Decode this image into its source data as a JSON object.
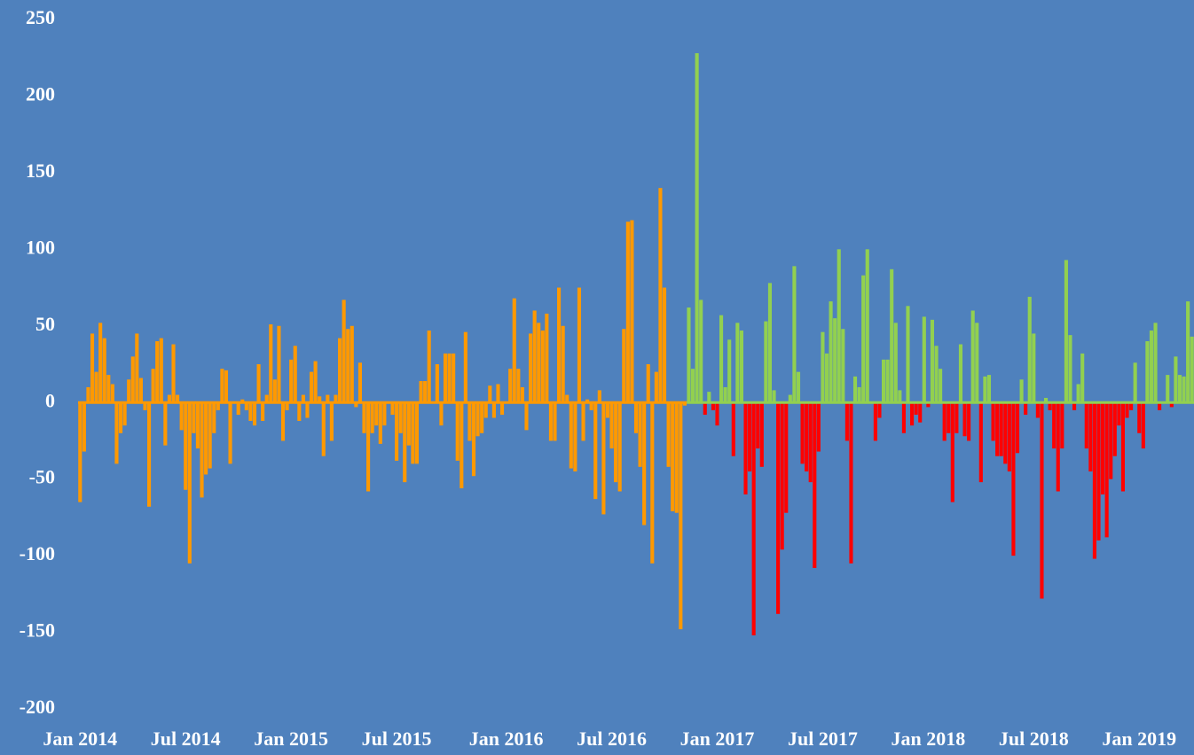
{
  "chart_data": {
    "type": "bar",
    "xlim": [
      -0.5,
      274.5
    ],
    "xticks": [
      {
        "value": 0,
        "label": "Jan 2014"
      },
      {
        "value": 26,
        "label": "Jul 2014"
      },
      {
        "value": 52,
        "label": "Jan 2015"
      },
      {
        "value": 78,
        "label": "Jul 2015"
      },
      {
        "value": 105,
        "label": "Jan 2016"
      },
      {
        "value": 131,
        "label": "Jul 2016"
      },
      {
        "value": 157,
        "label": "Jan 2017"
      },
      {
        "value": 183,
        "label": "Jul 2017"
      },
      {
        "value": 209,
        "label": "Jan 2018"
      },
      {
        "value": 235,
        "label": "Jul 2018"
      },
      {
        "value": 261,
        "label": "Jan 2019"
      }
    ],
    "ylim": [
      -200,
      250
    ],
    "yticks": [
      -200,
      -150,
      -100,
      -50,
      0,
      50,
      100,
      150,
      200,
      250
    ],
    "background": "#4f81bd",
    "series": [
      {
        "color": "#ff9900",
        "values": [
          -65,
          -32,
          10,
          45,
          20,
          52,
          42,
          18,
          12,
          -40,
          -20,
          -15,
          15,
          30,
          45,
          16,
          -5,
          -68,
          22,
          40,
          42,
          -28,
          5,
          38,
          5,
          -18,
          -57,
          -105,
          -20,
          -30,
          -62,
          -47,
          -43,
          -20,
          -5,
          22,
          21,
          -40,
          0,
          -8,
          2,
          -5,
          -12,
          -15,
          25,
          -12,
          5,
          51,
          15,
          50,
          -25,
          -5,
          28,
          37,
          -12,
          5,
          -10,
          20,
          27,
          4,
          -35,
          5,
          -25,
          5,
          42,
          67,
          48,
          50,
          -3,
          26,
          -20,
          -58,
          -20,
          -15,
          -27,
          -15,
          0,
          -8,
          -38,
          -20,
          -52,
          -28,
          -40,
          -40,
          14,
          14,
          47,
          0,
          25,
          -15,
          32,
          32,
          32,
          -38,
          -56,
          46,
          -25,
          -48,
          -22,
          -20,
          -10,
          11,
          -10,
          12,
          -8,
          0,
          22,
          68,
          22,
          10,
          -18,
          45,
          60,
          52,
          47,
          58,
          -25,
          -25,
          75,
          50,
          5,
          -43,
          -45,
          75,
          -25,
          2,
          -5,
          -63,
          8,
          -73,
          -10,
          -30,
          -52,
          -58,
          48,
          118,
          119,
          -20,
          -42,
          -80,
          25,
          -105,
          20,
          140,
          75,
          -42,
          -71,
          -72,
          -148,
          -2,
          null,
          null,
          null,
          null,
          null,
          null,
          null,
          null,
          null,
          null,
          null,
          null,
          null,
          null,
          null,
          null,
          null,
          null,
          null,
          null,
          null,
          null,
          null,
          null,
          null,
          null,
          null,
          null,
          null,
          null,
          null,
          null,
          null,
          null,
          null,
          null,
          null,
          null,
          null,
          null,
          null,
          null,
          null,
          null,
          null,
          null,
          null,
          null,
          null,
          null,
          null,
          null,
          null,
          null,
          null,
          null,
          null,
          null,
          null,
          null,
          null,
          null,
          null,
          null,
          null,
          null,
          null,
          null,
          null,
          null,
          null,
          null,
          null,
          null,
          null,
          null,
          null,
          null,
          null,
          null,
          null,
          null,
          null,
          null,
          null,
          null,
          null,
          null,
          null,
          null,
          null,
          null,
          null,
          null,
          null,
          null,
          null,
          null,
          null,
          null,
          null,
          null,
          null,
          null,
          null,
          null,
          null,
          null,
          null,
          null,
          null,
          null,
          null,
          null,
          null,
          null,
          null,
          null,
          null,
          null,
          null,
          null,
          null,
          null,
          null
        ]
      },
      {
        "color": "#92d050",
        "negative_color": "#ff0000",
        "values": [
          null,
          null,
          null,
          null,
          null,
          null,
          null,
          null,
          null,
          null,
          null,
          null,
          null,
          null,
          null,
          null,
          null,
          null,
          null,
          null,
          null,
          null,
          null,
          null,
          null,
          null,
          null,
          null,
          null,
          null,
          null,
          null,
          null,
          null,
          null,
          null,
          null,
          null,
          null,
          null,
          null,
          null,
          null,
          null,
          null,
          null,
          null,
          null,
          null,
          null,
          null,
          null,
          null,
          null,
          null,
          null,
          null,
          null,
          null,
          null,
          null,
          null,
          null,
          null,
          null,
          null,
          null,
          null,
          null,
          null,
          null,
          null,
          null,
          null,
          null,
          null,
          null,
          null,
          null,
          null,
          null,
          null,
          null,
          null,
          null,
          null,
          null,
          null,
          null,
          null,
          null,
          null,
          null,
          null,
          null,
          null,
          null,
          null,
          null,
          null,
          null,
          null,
          null,
          null,
          null,
          null,
          null,
          null,
          null,
          null,
          null,
          null,
          null,
          null,
          null,
          null,
          null,
          null,
          null,
          null,
          null,
          null,
          null,
          null,
          null,
          null,
          null,
          null,
          null,
          null,
          null,
          null,
          null,
          null,
          null,
          null,
          null,
          null,
          null,
          null,
          null,
          null,
          null,
          null,
          null,
          null,
          null,
          null,
          null,
          null,
          62,
          22,
          228,
          67,
          -8,
          7,
          -5,
          -15,
          57,
          10,
          41,
          -35,
          52,
          47,
          -60,
          -45,
          -152,
          -30,
          -42,
          53,
          78,
          8,
          -138,
          -96,
          -72,
          5,
          89,
          20,
          -40,
          -45,
          -52,
          -108,
          -32,
          46,
          32,
          66,
          55,
          100,
          48,
          -25,
          -105,
          17,
          10,
          83,
          100,
          0,
          -25,
          -10,
          28,
          28,
          87,
          52,
          8,
          -20,
          63,
          -15,
          -8,
          -13,
          56,
          -3,
          54,
          37,
          22,
          -25,
          -20,
          -65,
          -20,
          38,
          -22,
          -25,
          60,
          52,
          -52,
          17,
          18,
          -25,
          -35,
          -35,
          -40,
          -45,
          -100,
          -33,
          15,
          -8,
          69,
          45,
          -10,
          -128,
          3,
          -5,
          -30,
          -58,
          -30,
          93,
          44,
          -5,
          12,
          32,
          -30,
          -45,
          -102,
          -90,
          -60,
          -88,
          -50,
          -35,
          -15,
          -58,
          -10,
          -5,
          26,
          -20,
          -30,
          40,
          47,
          52,
          -5,
          0,
          18,
          -3,
          30,
          18,
          17,
          66,
          43
        ]
      }
    ]
  }
}
